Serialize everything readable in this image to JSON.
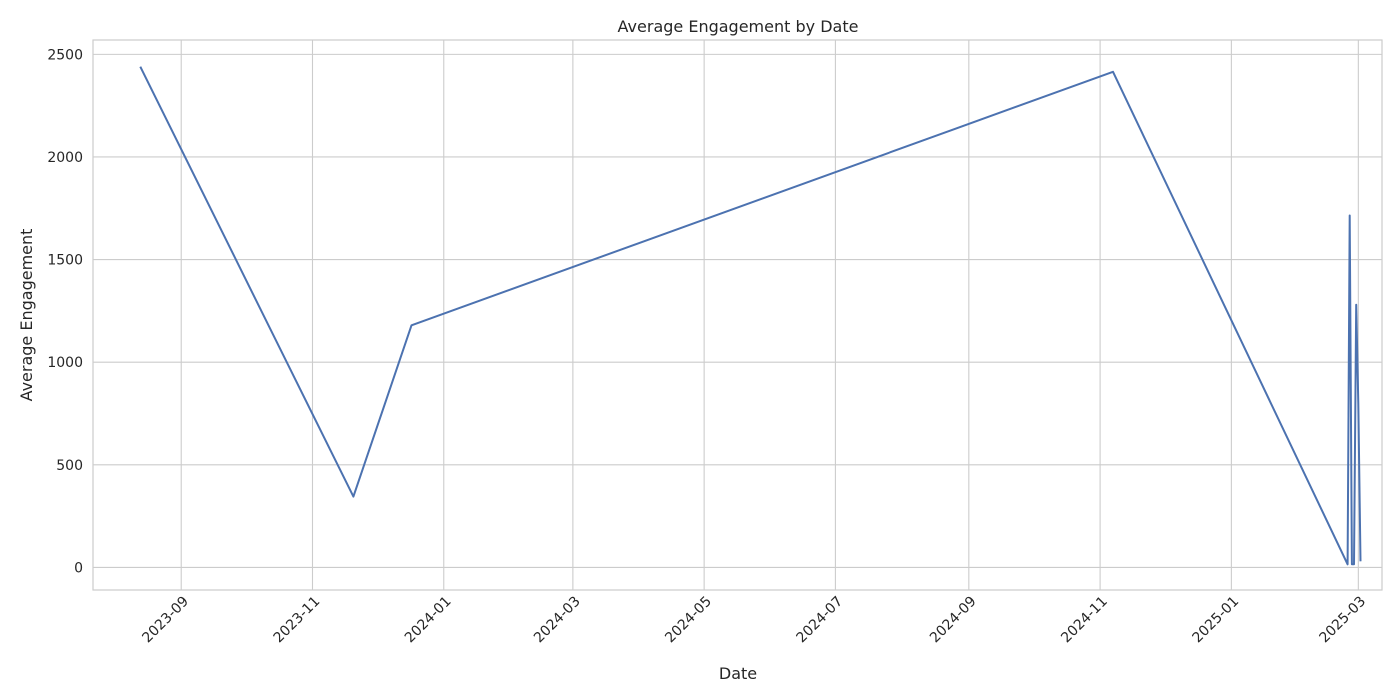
{
  "chart_data": {
    "type": "line",
    "title": "Average Engagement by Date",
    "xlabel": "Date",
    "ylabel": "Average Engagement",
    "grid": true,
    "xlim": [
      "2023-07-22",
      "2025-03-12"
    ],
    "ylim": [
      -110,
      2570
    ],
    "x_ticks": [
      "2023-09",
      "2023-11",
      "2024-01",
      "2024-03",
      "2024-05",
      "2024-07",
      "2024-09",
      "2024-11",
      "2025-01",
      "2025-03"
    ],
    "y_ticks": [
      0,
      500,
      1000,
      1500,
      2000,
      2500
    ],
    "series": [
      {
        "color": "#4c72b0",
        "x": [
          "2023-08-13",
          "2023-11-20",
          "2023-12-17",
          "2024-11-07",
          "2025-02-24",
          "2025-02-25",
          "2025-02-26",
          "2025-02-27",
          "2025-02-28",
          "2025-03-01",
          "2025-03-02"
        ],
        "y": [
          2440,
          345,
          1180,
          2415,
          15,
          1715,
          15,
          15,
          1280,
          800,
          30
        ]
      }
    ]
  }
}
